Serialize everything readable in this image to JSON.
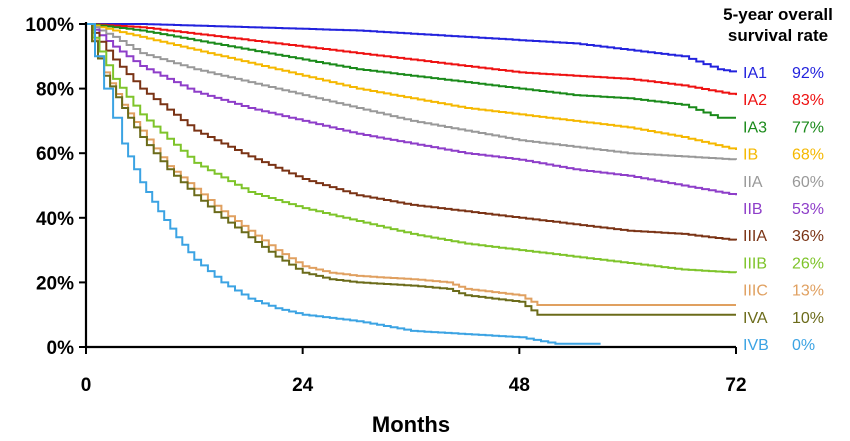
{
  "chart_data": {
    "type": "line",
    "title": "",
    "xlabel": "Months",
    "ylabel": "",
    "xlim": [
      0,
      72
    ],
    "ylim": [
      0,
      100
    ],
    "x_ticks": [
      0,
      24,
      48,
      72
    ],
    "x_tick_labels": [
      "0",
      "24",
      "48",
      "72"
    ],
    "y_ticks": [
      0,
      20,
      40,
      60,
      80,
      100
    ],
    "y_tick_labels": [
      "0%",
      "20%",
      "40%",
      "60%",
      "80%",
      "100%"
    ],
    "grid": false,
    "legend": {
      "position": "right",
      "title_line1": "5-year overall",
      "title_line2": "survival rate"
    },
    "series": [
      {
        "name": "IA1",
        "rate_label": "92%",
        "color": "#2222dd",
        "x": [
          0,
          6,
          12,
          18,
          24,
          30,
          36,
          42,
          48,
          54,
          60,
          66,
          70,
          72
        ],
        "y": [
          100,
          100,
          99.5,
          99,
          98.5,
          98,
          97,
          96,
          95,
          94,
          92,
          90,
          86,
          85
        ]
      },
      {
        "name": "IA2",
        "rate_label": "83%",
        "color": "#ee1111",
        "x": [
          0,
          6,
          12,
          18,
          24,
          30,
          36,
          42,
          48,
          54,
          60,
          66,
          72
        ],
        "y": [
          100,
          99,
          97,
          95,
          93,
          91,
          89,
          87,
          85,
          84,
          83,
          81,
          78
        ]
      },
      {
        "name": "IA3",
        "rate_label": "77%",
        "color": "#1a8a1a",
        "x": [
          0,
          6,
          12,
          18,
          24,
          30,
          36,
          42,
          48,
          54,
          60,
          66,
          70,
          72
        ],
        "y": [
          100,
          98,
          95,
          92,
          89,
          86,
          84,
          82,
          80,
          78,
          77,
          75,
          71,
          71
        ]
      },
      {
        "name": "IB",
        "rate_label": "68%",
        "color": "#f5b800",
        "x": [
          0,
          6,
          12,
          18,
          24,
          30,
          36,
          42,
          48,
          54,
          60,
          66,
          72
        ],
        "y": [
          100,
          96,
          92,
          88,
          84,
          80,
          77,
          74,
          72,
          70,
          68,
          65,
          61
        ]
      },
      {
        "name": "IIA",
        "rate_label": "60%",
        "color": "#999999",
        "x": [
          0,
          3,
          6,
          12,
          18,
          24,
          30,
          36,
          42,
          48,
          54,
          60,
          66,
          72
        ],
        "y": [
          100,
          96,
          91,
          86,
          82,
          78,
          74,
          70,
          67,
          64,
          62,
          60,
          59,
          58
        ]
      },
      {
        "name": "IIB",
        "rate_label": "53%",
        "color": "#8e3ec9",
        "x": [
          0,
          3,
          6,
          12,
          18,
          24,
          30,
          36,
          42,
          48,
          54,
          60,
          66,
          72
        ],
        "y": [
          100,
          93,
          87,
          79,
          74,
          70,
          66,
          63,
          60,
          58,
          55,
          53,
          50,
          47
        ]
      },
      {
        "name": "IIIA",
        "rate_label": "36%",
        "color": "#7a3315",
        "x": [
          0,
          3,
          6,
          12,
          18,
          24,
          30,
          36,
          42,
          48,
          54,
          60,
          66,
          72
        ],
        "y": [
          100,
          89,
          80,
          67,
          59,
          52,
          47,
          44,
          42,
          40,
          38,
          36,
          35,
          33
        ]
      },
      {
        "name": "IIIB",
        "rate_label": "26%",
        "color": "#7ec42a",
        "x": [
          0,
          3,
          6,
          12,
          18,
          24,
          30,
          36,
          42,
          48,
          54,
          60,
          66,
          72
        ],
        "y": [
          100,
          83,
          72,
          57,
          48,
          43,
          39,
          35,
          32,
          30,
          28,
          26,
          24,
          23
        ]
      },
      {
        "name": "IIIC",
        "rate_label": "13%",
        "color": "#e0a060",
        "x": [
          0,
          2,
          4,
          6,
          9,
          12,
          15,
          18,
          21,
          24,
          27,
          30,
          36,
          40,
          42,
          48,
          50,
          54,
          60,
          72
        ],
        "y": [
          100,
          85,
          75,
          67,
          56,
          49,
          42,
          36,
          30,
          25,
          23,
          22,
          21,
          20,
          18,
          16,
          13,
          13,
          13,
          13
        ]
      },
      {
        "name": "IVA",
        "rate_label": "10%",
        "color": "#6b6b1a",
        "x": [
          0,
          2,
          4,
          6,
          9,
          12,
          15,
          18,
          21,
          24,
          27,
          30,
          36,
          40,
          42,
          48,
          50,
          54,
          60,
          72
        ],
        "y": [
          100,
          84,
          74,
          65,
          55,
          47,
          40,
          34,
          28,
          23,
          21,
          20,
          19,
          18,
          16,
          14,
          10,
          10,
          10,
          10
        ]
      },
      {
        "name": "IVB",
        "rate_label": "0%",
        "color": "#3ba3e3",
        "x": [
          0,
          1,
          2,
          3,
          4,
          6,
          8,
          10,
          12,
          15,
          18,
          21,
          24,
          30,
          36,
          42,
          48,
          52,
          54,
          57
        ],
        "y": [
          100,
          90,
          80,
          71,
          63,
          51,
          42,
          34,
          27,
          20,
          15,
          12,
          10,
          8,
          5,
          4,
          3,
          1,
          1,
          1
        ]
      }
    ]
  }
}
